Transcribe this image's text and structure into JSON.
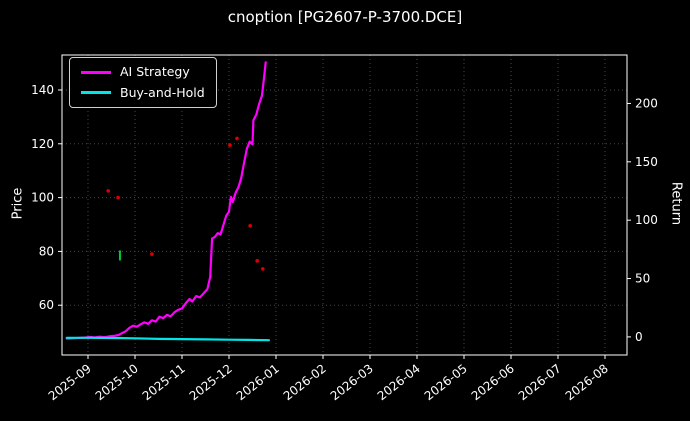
{
  "chart_data": {
    "type": "line",
    "title": "cnoption [PG2607-P-3700.DCE]",
    "ylabel_left": "Price",
    "ylabel_right": "Return",
    "x_tick_labels": [
      "2025-09",
      "2025-10",
      "2025-11",
      "2025-12",
      "2026-01",
      "2026-02",
      "2026-03",
      "2026-04",
      "2026-05",
      "2026-06",
      "2026-07",
      "2026-08"
    ],
    "x_lim_months": [
      -0.553,
      11.468
    ],
    "price_ticks": [
      60,
      80,
      100,
      120,
      140
    ],
    "price_lim": [
      41.5,
      153.0
    ],
    "return_ticks": [
      0,
      50,
      100,
      150,
      200
    ],
    "return_lim": [
      -15.5,
      241.5
    ],
    "grid": true,
    "legend_position": "upper-left",
    "background": "#000000",
    "grid_color": "#474747",
    "frame_color": "#ffffff",
    "text_color": "#ffffff",
    "legend": [
      {
        "label": "AI Strategy",
        "color": "#ff00ff"
      },
      {
        "label": "Buy-and-Hold",
        "color": "#00e6e6"
      }
    ],
    "series": [
      {
        "name": "AI Strategy",
        "color": "#ff00ff",
        "width": 2.2,
        "points": [
          [
            -0.45,
            47.6
          ],
          [
            -0.32,
            47.7
          ],
          [
            -0.18,
            47.9
          ],
          [
            -0.05,
            48.0
          ],
          [
            0.05,
            48.2
          ],
          [
            0.15,
            48.0
          ],
          [
            0.25,
            48.3
          ],
          [
            0.35,
            48.1
          ],
          [
            0.45,
            48.4
          ],
          [
            0.55,
            48.6
          ],
          [
            0.65,
            48.9
          ],
          [
            0.72,
            49.6
          ],
          [
            0.8,
            50.3
          ],
          [
            0.88,
            51.6
          ],
          [
            0.96,
            52.4
          ],
          [
            1.04,
            52.0
          ],
          [
            1.12,
            52.9
          ],
          [
            1.2,
            53.6
          ],
          [
            1.28,
            53.1
          ],
          [
            1.36,
            54.4
          ],
          [
            1.44,
            53.9
          ],
          [
            1.52,
            55.7
          ],
          [
            1.6,
            55.2
          ],
          [
            1.68,
            56.4
          ],
          [
            1.76,
            55.9
          ],
          [
            1.84,
            57.4
          ],
          [
            1.92,
            58.3
          ],
          [
            2.0,
            58.8
          ],
          [
            2.08,
            60.8
          ],
          [
            2.16,
            62.3
          ],
          [
            2.22,
            61.4
          ],
          [
            2.3,
            63.4
          ],
          [
            2.38,
            62.9
          ],
          [
            2.46,
            64.4
          ],
          [
            2.54,
            66.0
          ],
          [
            2.6,
            70.5
          ],
          [
            2.64,
            84.8
          ],
          [
            2.7,
            85.4
          ],
          [
            2.76,
            86.8
          ],
          [
            2.82,
            86.3
          ],
          [
            2.88,
            89.8
          ],
          [
            2.94,
            93.2
          ],
          [
            3.0,
            94.8
          ],
          [
            3.04,
            100.3
          ],
          [
            3.08,
            98.4
          ],
          [
            3.14,
            101.8
          ],
          [
            3.2,
            103.8
          ],
          [
            3.26,
            107.3
          ],
          [
            3.32,
            112.8
          ],
          [
            3.38,
            118.2
          ],
          [
            3.44,
            120.8
          ],
          [
            3.5,
            119.8
          ],
          [
            3.52,
            128.8
          ],
          [
            3.58,
            130.8
          ],
          [
            3.64,
            134.8
          ],
          [
            3.7,
            137.8
          ],
          [
            3.74,
            143.8
          ],
          [
            3.78,
            150.3
          ]
        ]
      },
      {
        "name": "Buy-and-Hold",
        "color": "#00e6e6",
        "width": 2.2,
        "points": [
          [
            -0.45,
            47.9
          ],
          [
            0.0,
            47.9
          ],
          [
            0.5,
            47.8
          ],
          [
            1.0,
            47.7
          ],
          [
            1.5,
            47.5
          ],
          [
            2.0,
            47.4
          ],
          [
            2.5,
            47.3
          ],
          [
            3.0,
            47.2
          ],
          [
            3.4,
            47.1
          ],
          [
            3.85,
            47.0
          ]
        ]
      }
    ],
    "markers": [
      {
        "x": 0.43,
        "y": 102.5,
        "color": "#dd0000",
        "shape": "dot"
      },
      {
        "x": 0.64,
        "y": 100.0,
        "color": "#dd0000",
        "shape": "dot"
      },
      {
        "x": 0.68,
        "y": 78.5,
        "color": "#00cc33",
        "shape": "vline"
      },
      {
        "x": 1.36,
        "y": 79.0,
        "color": "#dd0000",
        "shape": "dot"
      },
      {
        "x": 3.02,
        "y": 119.5,
        "color": "#dd0000",
        "shape": "dot"
      },
      {
        "x": 3.17,
        "y": 122.0,
        "color": "#dd0000",
        "shape": "dot"
      },
      {
        "x": 3.45,
        "y": 89.5,
        "color": "#dd0000",
        "shape": "dot"
      },
      {
        "x": 3.6,
        "y": 76.5,
        "color": "#dd0000",
        "shape": "dot"
      },
      {
        "x": 3.72,
        "y": 73.5,
        "color": "#dd0000",
        "shape": "dot"
      }
    ]
  }
}
